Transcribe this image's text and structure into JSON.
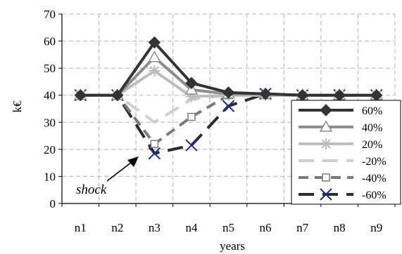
{
  "chart_data": {
    "type": "line",
    "categories": [
      "n1",
      "n2",
      "n3",
      "n4",
      "n5",
      "n6",
      "n7",
      "n8",
      "n9"
    ],
    "xlabel": "years",
    "ylabel": "k€",
    "ylim": [
      0,
      70
    ],
    "yticks": [
      0,
      10,
      20,
      30,
      40,
      50,
      60,
      70
    ],
    "grid": true,
    "legend": "right",
    "annotation": "shock",
    "series": [
      {
        "name": "60%",
        "values": [
          40,
          40,
          59.5,
          44.5,
          41,
          40.5,
          40,
          40,
          40
        ],
        "color": "#333333",
        "marker": "diamond",
        "dash": "solid"
      },
      {
        "name": "40%",
        "values": [
          40,
          40,
          54,
          42,
          40.5,
          40.5,
          40,
          40,
          40
        ],
        "color": "#8c8c8c",
        "marker": "triangle",
        "dash": "solid"
      },
      {
        "name": "20%",
        "values": [
          40,
          40,
          49,
          39.5,
          40,
          40,
          40,
          40,
          40
        ],
        "color": "#bdbdbd",
        "marker": "asterisk",
        "dash": "solid"
      },
      {
        "name": "-20%",
        "values": [
          40,
          40,
          30,
          38.5,
          40,
          40,
          40,
          40,
          40
        ],
        "color": "#cfcfcf",
        "marker": "none",
        "dash": "long"
      },
      {
        "name": "-40%",
        "values": [
          40,
          40,
          22,
          32,
          40,
          40,
          40,
          40,
          40
        ],
        "color": "#7a7a7a",
        "marker": "square",
        "dash": "medium"
      },
      {
        "name": "-60%",
        "values": [
          40,
          40,
          18.5,
          21.5,
          36,
          40.5,
          40,
          40,
          40
        ],
        "color": "#2b2b2b",
        "marker": "x",
        "dash": "long"
      }
    ]
  }
}
